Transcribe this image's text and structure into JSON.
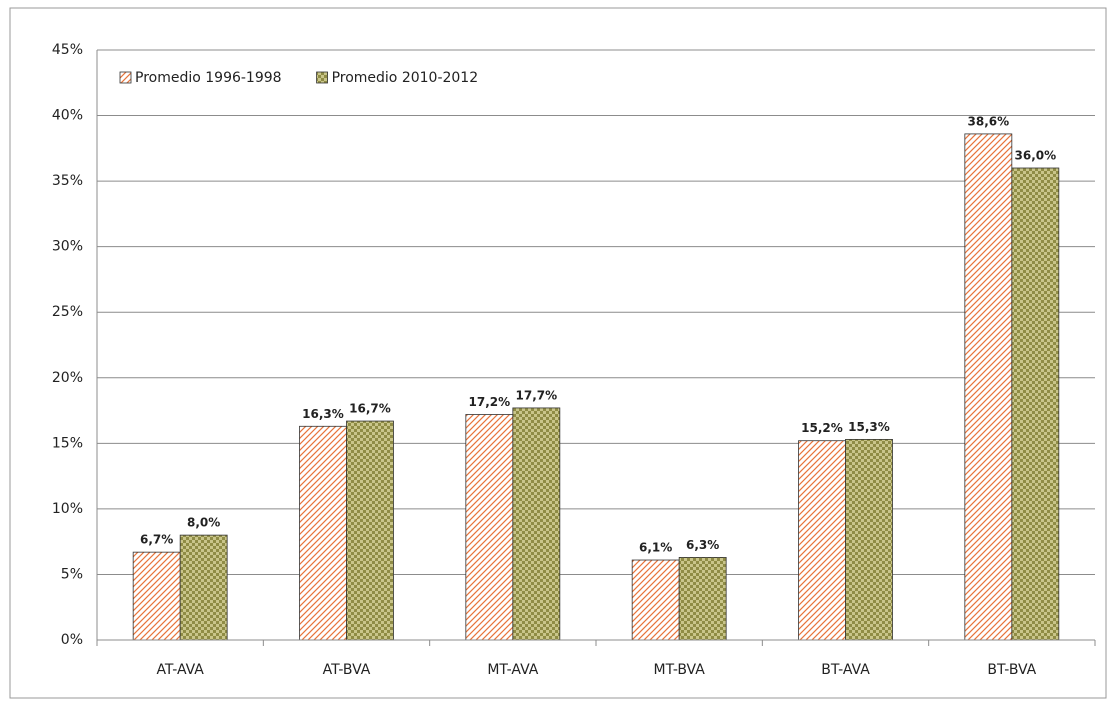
{
  "chart_data": {
    "type": "bar",
    "categories": [
      "AT-AVA",
      "AT-BVA",
      "MT-AVA",
      "MT-BVA",
      "BT-AVA",
      "BT-BVA"
    ],
    "series": [
      {
        "name": "Promedio 1996-1998",
        "color": "#e8743b",
        "values": [
          6.7,
          16.3,
          17.2,
          6.1,
          15.2,
          38.6
        ],
        "value_labels": [
          "6,7%",
          "16,3%",
          "17,2%",
          "6,1%",
          "15,2%",
          "38,6%"
        ]
      },
      {
        "name": "Promedio 2010-2012",
        "color": "#8f8c45",
        "values": [
          8.0,
          16.7,
          17.7,
          6.3,
          15.3,
          36.0
        ],
        "value_labels": [
          "8,0%",
          "16,7%",
          "17,7%",
          "6,3%",
          "15,3%",
          "36,0%"
        ]
      }
    ],
    "ylim": [
      0,
      45
    ],
    "yticks": [
      {
        "value": 0,
        "label": "0%"
      },
      {
        "value": 5,
        "label": "5%"
      },
      {
        "value": 10,
        "label": "10%"
      },
      {
        "value": 15,
        "label": "15%"
      },
      {
        "value": 20,
        "label": "20%"
      },
      {
        "value": 25,
        "label": "25%"
      },
      {
        "value": 30,
        "label": "30%"
      },
      {
        "value": 35,
        "label": "35%"
      },
      {
        "value": 40,
        "label": "40%"
      },
      {
        "value": 45,
        "label": "45%"
      }
    ],
    "grid": true,
    "legend": "upper left"
  }
}
